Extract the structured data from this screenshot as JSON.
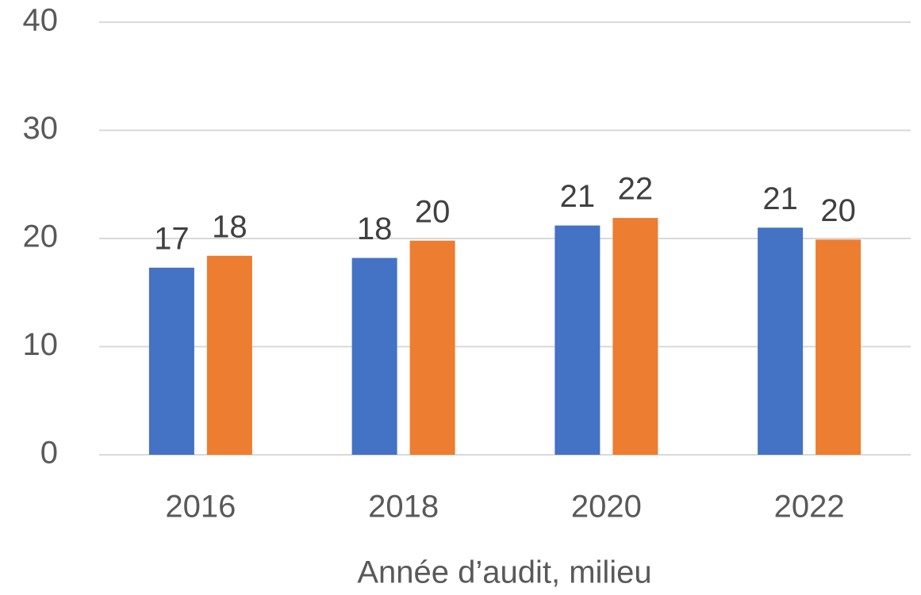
{
  "chart_data": {
    "type": "bar",
    "x_label": "Année d’audit, milieu",
    "categories": [
      "2016",
      "2018",
      "2020",
      "2022"
    ],
    "series": [
      {
        "color": "#4472c4",
        "values": [
          17.3,
          18.2,
          21.2,
          21.0
        ],
        "value_labels": [
          "17",
          "18",
          "21",
          "21"
        ]
      },
      {
        "color": "#ed7d31",
        "values": [
          18.4,
          19.8,
          21.9,
          19.9
        ],
        "value_labels": [
          "18",
          "20",
          "22",
          "20"
        ]
      }
    ],
    "ylim": [
      0,
      40
    ],
    "yticks": [
      0,
      10,
      20,
      30,
      40
    ],
    "grid": true
  }
}
